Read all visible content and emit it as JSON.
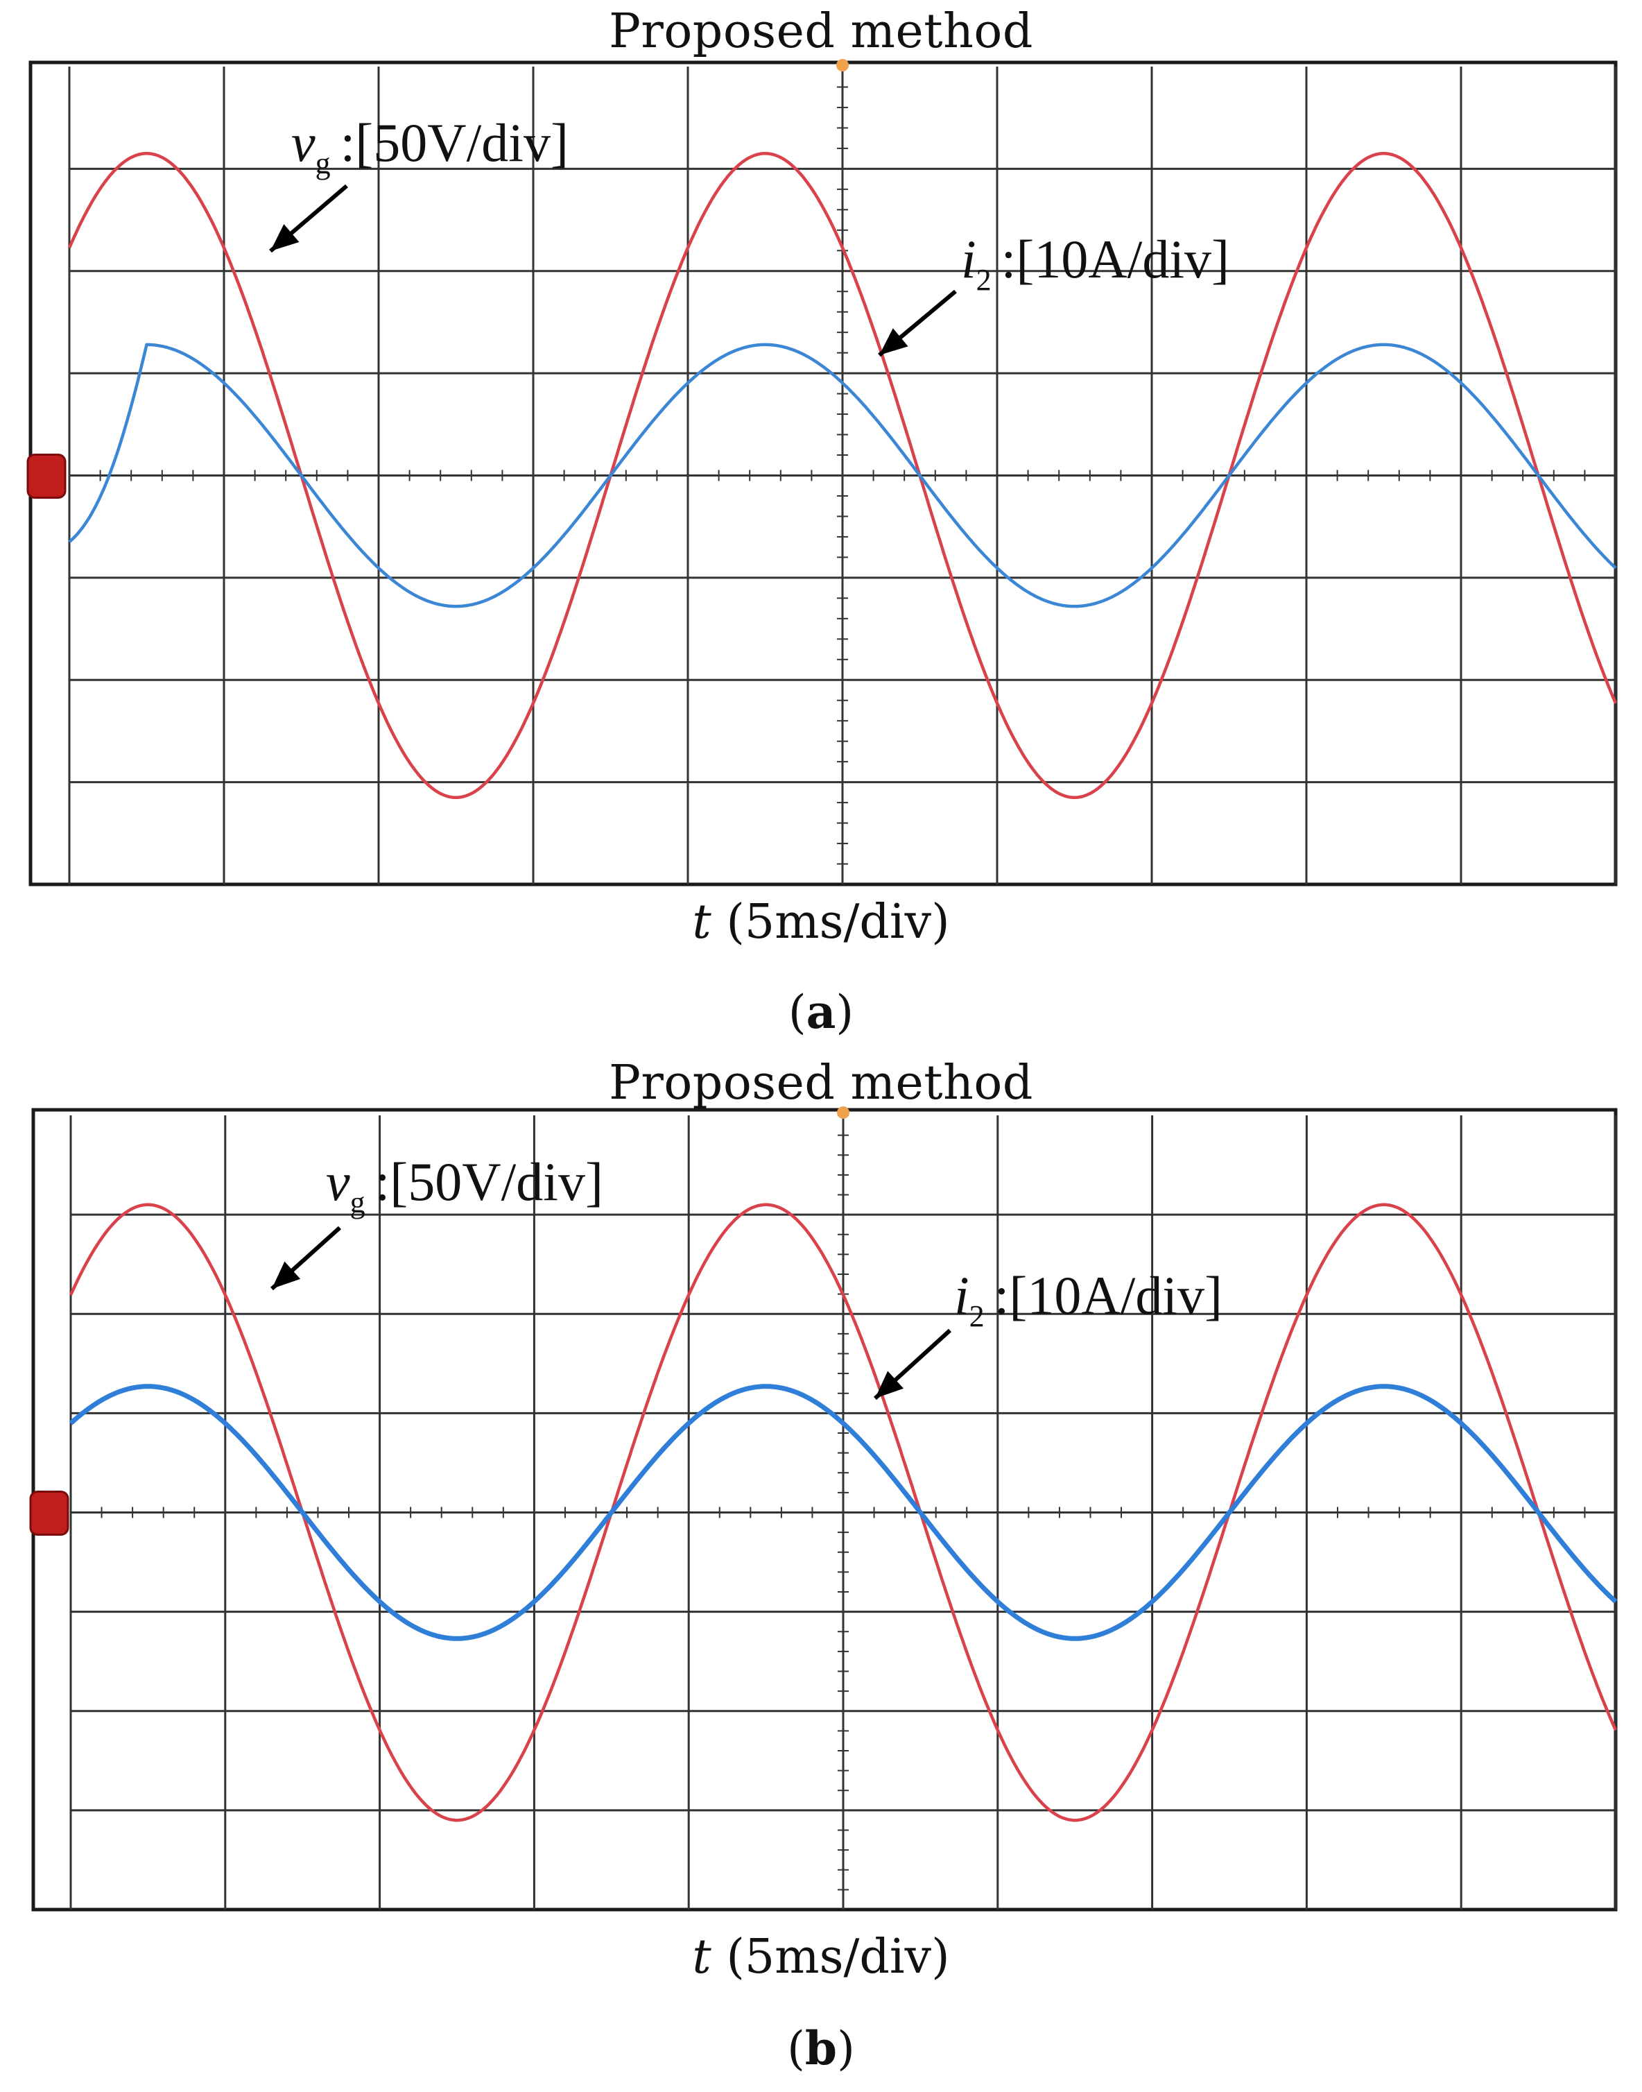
{
  "chart_data": [
    {
      "type": "line",
      "panel": "(a)",
      "title": "Proposed method",
      "xlabel_var": "t",
      "xlabel_unit": " (5ms/div)",
      "caption_letter": "a",
      "x_divisions": 10,
      "y_divisions": 8,
      "grid": true,
      "frequency_hz": 50,
      "startup_transient": true,
      "series": [
        {
          "var": "v",
          "sub": "g",
          "label": ":[50V/div]",
          "color": "#d9424b",
          "amplitude_div": 3.15,
          "offset_div": 0.0,
          "phase_deg": 0
        },
        {
          "var": "i",
          "sub": "2",
          "label": ":[10A/div]",
          "color": "#3c86d6",
          "amplitude_div": 1.28,
          "offset_div": 0.0,
          "phase_deg": 0
        }
      ]
    },
    {
      "type": "line",
      "panel": "(b)",
      "title": "Proposed method",
      "xlabel_var": "t",
      "xlabel_unit": " (5ms/div)",
      "caption_letter": "b",
      "x_divisions": 10,
      "y_divisions": 8,
      "grid": true,
      "frequency_hz": 50,
      "startup_transient": false,
      "series": [
        {
          "var": "v",
          "sub": "g",
          "label": ":[50V/div]",
          "color": "#d9424b",
          "amplitude_div": 3.1,
          "offset_div": 0.0,
          "phase_deg": 0
        },
        {
          "var": "i",
          "sub": "2",
          "label": ":[10A/div]",
          "color": "#2f7fd8",
          "amplitude_div": 1.27,
          "offset_div": 0.0,
          "phase_deg": 0
        }
      ]
    }
  ]
}
